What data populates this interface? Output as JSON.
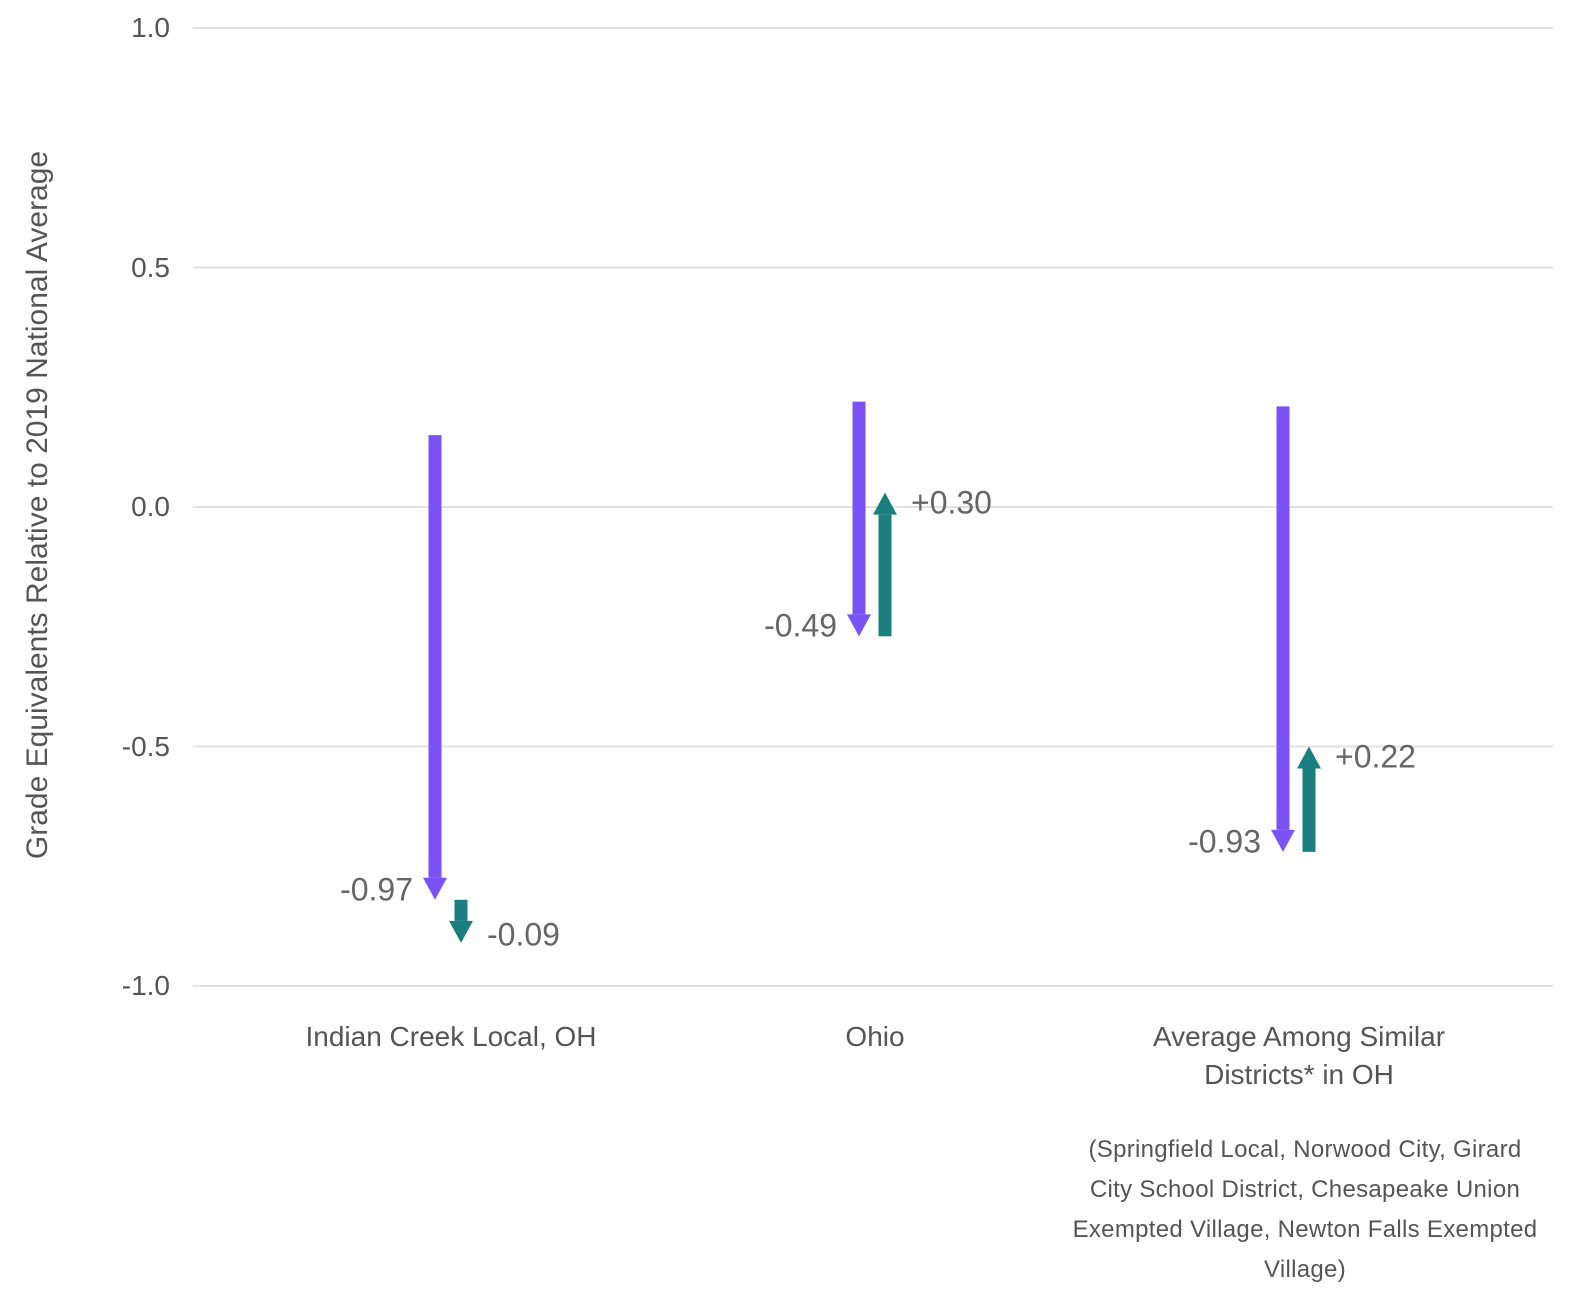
{
  "chart_data": {
    "type": "arrow",
    "ylabel": "Grade Equivalents Relative to 2019 National Average",
    "ylim": [
      -1.0,
      1.0
    ],
    "yticks": [
      "1.0",
      "0.5",
      "0.0",
      "-0.5",
      "-1.0"
    ],
    "grid": true,
    "colors": {
      "decline": "#7B52F5",
      "change": "#1A7F7E"
    },
    "categories": [
      {
        "name": "Indian Creek Local, OH",
        "name_lines": [
          "Indian Creek Local, OH"
        ],
        "start": 0.15,
        "decline": -0.97,
        "decline_label": "-0.97",
        "change": -0.09,
        "change_label": "-0.09"
      },
      {
        "name": "Ohio",
        "name_lines": [
          "Ohio"
        ],
        "start": 0.22,
        "decline": -0.49,
        "decline_label": "-0.49",
        "change": 0.3,
        "change_label": "+0.30"
      },
      {
        "name": "Average Among Similar Districts* in OH",
        "name_lines": [
          "Average Among Similar",
          "Districts* in OH"
        ],
        "start": 0.21,
        "decline": -0.93,
        "decline_label": "-0.93",
        "change": 0.22,
        "change_label": "+0.22"
      }
    ],
    "footnote_lines": [
      "(Springfield Local, Norwood City, Girard",
      "City School District, Chesapeake Union",
      "Exempted Village, Newton Falls Exempted",
      "Village)"
    ]
  }
}
